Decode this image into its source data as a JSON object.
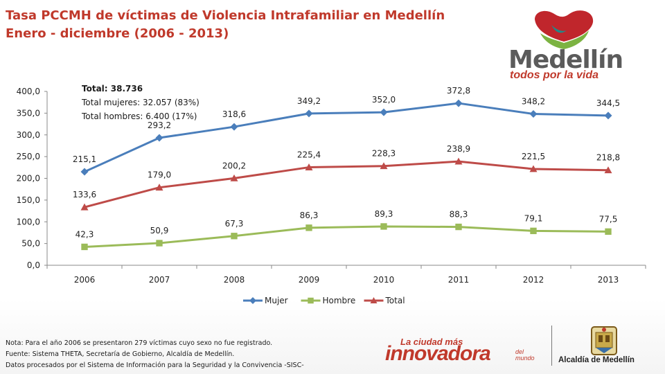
{
  "title": {
    "line1": "Tasa PCCMH de víctimas de Violencia Intrafamiliar en Medellín",
    "line2": "Enero - diciembre (2006 - 2013)"
  },
  "logo": {
    "word": "Medellín",
    "tagline": "todos por la vida",
    "colors": {
      "heart_red": "#c0262c",
      "heart_green": "#7cb342",
      "heart_teal": "#1f8a8a"
    }
  },
  "totals": {
    "total": "Total: 38.736",
    "mujeres": "Total mujeres: 32.057 (83%)",
    "hombres": "Total hombres: 6.400 (17%)"
  },
  "chart_data": {
    "type": "line",
    "x": [
      "2006",
      "2007",
      "2008",
      "2009",
      "2010",
      "2011",
      "2012",
      "2013"
    ],
    "ylim": [
      0,
      400
    ],
    "yticks": [
      "0,0",
      "50,0",
      "100,0",
      "150,0",
      "200,0",
      "250,0",
      "300,0",
      "350,0",
      "400,0"
    ],
    "ytick_values": [
      0,
      50,
      100,
      150,
      200,
      250,
      300,
      350,
      400
    ],
    "grid": false,
    "legend_position": "bottom",
    "series": [
      {
        "name": "Mujer",
        "color": "#4a7ebb",
        "marker": "diamond",
        "values": [
          215.1,
          293.2,
          318.6,
          349.2,
          352.0,
          372.8,
          348.2,
          344.5
        ],
        "labels": [
          "215,1",
          "293,2",
          "318,6",
          "349,2",
          "352,0",
          "372,8",
          "348,2",
          "344,5"
        ]
      },
      {
        "name": "Hombre",
        "color": "#9bbb59",
        "marker": "square",
        "values": [
          42.3,
          50.9,
          67.3,
          86.3,
          89.3,
          88.3,
          79.1,
          77.5
        ],
        "labels": [
          "42,3",
          "50,9",
          "67,3",
          "86,3",
          "89,3",
          "88,3",
          "79,1",
          "77,5"
        ]
      },
      {
        "name": "Total",
        "color": "#be4b48",
        "marker": "triangle",
        "values": [
          133.6,
          179.0,
          200.2,
          225.4,
          228.3,
          238.9,
          221.5,
          218.8
        ],
        "labels": [
          "133,6",
          "179,0",
          "200,2",
          "225,4",
          "228,3",
          "238,9",
          "221,5",
          "218,8"
        ]
      }
    ]
  },
  "footer": {
    "nota": "Nota:  Para el año 2006 se presentaron 279 víctimas  cuyo sexo no fue registrado.",
    "fuente": "Fuente: Sistema  THETA,  Secretaría de Gobierno, Alcaldía de Medellín.",
    "datos": "Datos procesados por el Sistema  de Información para la Seguridad y la Convivencia  -SISC-"
  },
  "branding": {
    "innov_top": "La ciudad más",
    "innov_main": "innovadora",
    "innov_del": "del",
    "innov_mundo": "mundo",
    "alcaldia": "Alcaldía de Medellín"
  }
}
